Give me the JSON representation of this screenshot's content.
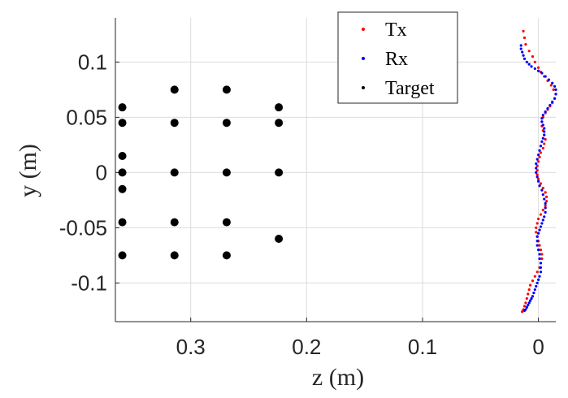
{
  "chart_data": {
    "type": "scatter",
    "title": "",
    "xlabel": "z (m)",
    "ylabel": "y (m)",
    "xlim": [
      -0.015,
      0.365
    ],
    "ylim": [
      -0.135,
      0.14
    ],
    "x_reversed": true,
    "grid": true,
    "legend_position": "top-right",
    "x_ticks": [
      {
        "value": 0.3,
        "label": "0.3"
      },
      {
        "value": 0.2,
        "label": "0.2"
      },
      {
        "value": 0.1,
        "label": "0.1"
      },
      {
        "value": 0,
        "label": "0"
      }
    ],
    "y_ticks": [
      {
        "value": 0.1,
        "label": "0.1"
      },
      {
        "value": 0.05,
        "label": "0.05"
      },
      {
        "value": 0,
        "label": "0"
      },
      {
        "value": -0.05,
        "label": "-0.05"
      },
      {
        "value": -0.1,
        "label": "-0.1"
      }
    ],
    "series": [
      {
        "name": "Tx",
        "color": "#ff0000",
        "marker_size": "small",
        "x": [
          0.013,
          0.012,
          0.011,
          0.008,
          0.005,
          0.003,
          0.0,
          -0.002,
          -0.005,
          -0.008,
          -0.011,
          -0.013,
          -0.015,
          -0.014,
          -0.012,
          -0.01,
          -0.008,
          -0.006,
          -0.004,
          -0.003,
          -0.003,
          -0.004,
          -0.005,
          -0.006,
          -0.005,
          -0.004,
          -0.002,
          -0.001,
          0.0,
          0.001,
          0.001,
          0.001,
          0.0,
          -0.002,
          -0.004,
          -0.006,
          -0.007,
          -0.007,
          -0.006,
          -0.004,
          -0.002,
          0.0,
          0.001,
          0.002,
          0.002,
          0.001,
          0.0,
          -0.001,
          -0.002,
          -0.003,
          -0.003,
          -0.002,
          -0.001,
          0.001,
          0.003,
          0.005,
          0.007,
          0.008,
          0.009,
          0.01,
          0.011,
          0.012,
          0.013,
          0.014
        ],
        "y": [
          0.128,
          0.122,
          0.116,
          0.11,
          0.105,
          0.1,
          0.095,
          0.091,
          0.087,
          0.083,
          0.079,
          0.075,
          0.071,
          0.067,
          0.063,
          0.06,
          0.057,
          0.054,
          0.05,
          0.046,
          0.042,
          0.038,
          0.034,
          0.03,
          0.026,
          0.022,
          0.018,
          0.014,
          0.01,
          0.006,
          0.002,
          -0.002,
          -0.006,
          -0.01,
          -0.014,
          -0.018,
          -0.022,
          -0.026,
          -0.03,
          -0.034,
          -0.038,
          -0.042,
          -0.046,
          -0.05,
          -0.054,
          -0.058,
          -0.062,
          -0.066,
          -0.07,
          -0.074,
          -0.078,
          -0.082,
          -0.086,
          -0.09,
          -0.094,
          -0.098,
          -0.102,
          -0.106,
          -0.11,
          -0.114,
          -0.118,
          -0.121,
          -0.124,
          -0.126
        ]
      },
      {
        "name": "Rx",
        "color": "#0000ff",
        "marker_size": "small",
        "x": [
          0.015,
          0.015,
          0.014,
          0.013,
          0.012,
          0.01,
          0.008,
          0.006,
          0.003,
          0.0,
          -0.003,
          -0.006,
          -0.009,
          -0.012,
          -0.014,
          -0.015,
          -0.015,
          -0.014,
          -0.012,
          -0.01,
          -0.008,
          -0.006,
          -0.004,
          -0.003,
          -0.003,
          -0.004,
          -0.005,
          -0.005,
          -0.005,
          -0.004,
          -0.003,
          -0.002,
          -0.001,
          0.0,
          0.001,
          0.002,
          0.002,
          0.002,
          0.001,
          0.0,
          -0.001,
          -0.003,
          -0.004,
          -0.005,
          -0.006,
          -0.006,
          -0.006,
          -0.005,
          -0.004,
          -0.003,
          -0.002,
          -0.001,
          0.0,
          0.001,
          0.001,
          0.001,
          0.0,
          -0.001,
          -0.001,
          -0.002,
          -0.002,
          -0.002,
          -0.001,
          0.0,
          0.001,
          0.002,
          0.003,
          0.004,
          0.005,
          0.006,
          0.007,
          0.008,
          0.009,
          0.01,
          0.011,
          0.012
        ],
        "y": [
          0.115,
          0.112,
          0.109,
          0.106,
          0.103,
          0.1,
          0.098,
          0.096,
          0.094,
          0.092,
          0.09,
          0.087,
          0.084,
          0.081,
          0.078,
          0.075,
          0.071,
          0.067,
          0.064,
          0.061,
          0.058,
          0.055,
          0.052,
          0.049,
          0.046,
          0.043,
          0.04,
          0.037,
          0.034,
          0.031,
          0.028,
          0.024,
          0.02,
          0.016,
          0.012,
          0.008,
          0.004,
          0.0,
          -0.004,
          -0.008,
          -0.012,
          -0.016,
          -0.02,
          -0.024,
          -0.028,
          -0.032,
          -0.036,
          -0.04,
          -0.043,
          -0.046,
          -0.049,
          -0.052,
          -0.055,
          -0.058,
          -0.062,
          -0.066,
          -0.07,
          -0.074,
          -0.078,
          -0.082,
          -0.086,
          -0.09,
          -0.094,
          -0.097,
          -0.1,
          -0.103,
          -0.106,
          -0.109,
          -0.112,
          -0.114,
          -0.116,
          -0.118,
          -0.12,
          -0.122,
          -0.124,
          -0.125
        ]
      },
      {
        "name": "Target",
        "color": "#000000",
        "marker_size": "large",
        "x": [
          0.359,
          0.359,
          0.359,
          0.359,
          0.359,
          0.359,
          0.359,
          0.314,
          0.314,
          0.314,
          0.314,
          0.314,
          0.269,
          0.269,
          0.269,
          0.269,
          0.269,
          0.224,
          0.224,
          0.224,
          0.224
        ],
        "y": [
          0.059,
          0.045,
          0.015,
          0.0,
          -0.015,
          -0.045,
          -0.075,
          0.075,
          0.045,
          0.0,
          -0.045,
          -0.075,
          0.075,
          0.045,
          0.0,
          -0.045,
          -0.075,
          0.059,
          0.045,
          0.0,
          -0.06
        ]
      }
    ]
  }
}
